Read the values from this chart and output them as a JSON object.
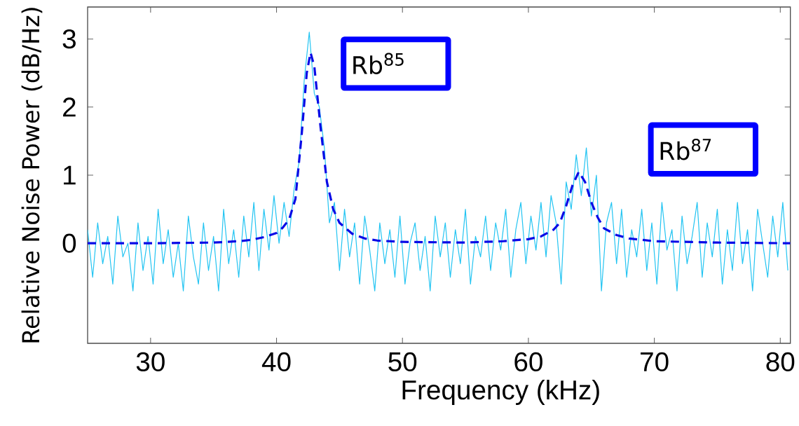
{
  "chart_data": {
    "type": "line",
    "xlabel": "Frequency (kHz)",
    "ylabel": "Relative Noise Power (dB/Hz)",
    "xlim": [
      25,
      80.8
    ],
    "ylim": [
      -1.47,
      3.47
    ],
    "xticks": [
      30,
      40,
      50,
      60,
      70,
      80
    ],
    "yticks": [
      0,
      1,
      2,
      3
    ],
    "marker": "none",
    "series": [
      {
        "color": "#22c4f2",
        "line_style": "solid",
        "x": [
          25.0,
          25.4,
          25.8,
          26.2,
          26.6,
          27.0,
          27.4,
          27.8,
          28.2,
          28.6,
          29.0,
          29.4,
          29.8,
          30.2,
          30.6,
          31.0,
          31.4,
          31.8,
          32.2,
          32.6,
          33.0,
          33.4,
          33.8,
          34.2,
          34.6,
          35.0,
          35.4,
          35.8,
          36.2,
          36.6,
          37.0,
          37.4,
          37.8,
          38.2,
          38.6,
          39.0,
          39.4,
          39.8,
          40.2,
          40.6,
          41.0,
          41.4,
          41.8,
          42.2,
          42.6,
          43.0,
          43.4,
          43.8,
          44.2,
          44.6,
          45.0,
          45.4,
          45.8,
          46.2,
          46.6,
          47.0,
          47.4,
          47.8,
          48.2,
          48.6,
          49.0,
          49.4,
          49.8,
          50.2,
          50.6,
          51.0,
          51.4,
          51.8,
          52.2,
          52.6,
          53.0,
          53.4,
          53.8,
          54.2,
          54.6,
          55.0,
          55.4,
          55.8,
          56.2,
          56.6,
          57.0,
          57.4,
          57.8,
          58.2,
          58.6,
          59.0,
          59.4,
          59.8,
          60.2,
          60.6,
          61.0,
          61.4,
          61.8,
          62.2,
          62.6,
          63.0,
          63.4,
          63.8,
          64.2,
          64.6,
          65.0,
          65.4,
          65.8,
          66.2,
          66.6,
          67.0,
          67.4,
          67.8,
          68.2,
          68.6,
          69.0,
          69.4,
          69.8,
          70.2,
          70.6,
          71.0,
          71.4,
          71.8,
          72.2,
          72.6,
          73.0,
          73.4,
          73.8,
          74.2,
          74.6,
          75.0,
          75.4,
          75.8,
          76.2,
          76.6,
          77.0,
          77.4,
          77.8,
          78.2,
          78.6,
          79.0,
          79.4,
          79.8,
          80.2,
          80.6
        ],
        "values": [
          0.2,
          -0.5,
          0.3,
          -0.3,
          0.1,
          -0.6,
          0.4,
          -0.2,
          0.0,
          -0.7,
          0.3,
          -0.4,
          0.1,
          -0.6,
          0.5,
          -0.3,
          0.2,
          -0.5,
          0.0,
          -0.7,
          0.4,
          -0.2,
          -0.6,
          0.3,
          -0.4,
          0.1,
          -0.7,
          0.5,
          -0.3,
          0.2,
          -0.5,
          0.4,
          -0.2,
          0.6,
          -0.4,
          0.5,
          -0.1,
          0.7,
          0.0,
          0.6,
          0.1,
          0.8,
          1.2,
          2.4,
          3.1,
          2.2,
          2.0,
          1.4,
          0.3,
          0.6,
          -0.4,
          0.5,
          -0.2,
          0.3,
          -0.6,
          0.4,
          -0.1,
          -0.7,
          0.3,
          -0.3,
          0.2,
          -0.5,
          0.4,
          -0.6,
          0.0,
          0.3,
          -0.4,
          0.1,
          -0.7,
          0.4,
          -0.2,
          0.3,
          -0.5,
          0.2,
          -0.3,
          0.5,
          -0.6,
          0.1,
          -0.2,
          0.4,
          -0.4,
          0.3,
          -0.1,
          0.5,
          -0.5,
          0.2,
          0.6,
          -0.3,
          0.4,
          -0.1,
          0.6,
          -0.2,
          0.7,
          0.3,
          -0.6,
          0.9,
          0.5,
          1.3,
          0.7,
          1.4,
          0.4,
          1.0,
          -0.7,
          0.3,
          0.6,
          -0.3,
          0.5,
          -0.5,
          0.2,
          -0.2,
          0.5,
          -0.4,
          0.3,
          -0.6,
          0.6,
          -0.1,
          0.2,
          -0.7,
          0.4,
          -0.3,
          0.1,
          0.6,
          -0.5,
          0.3,
          -0.2,
          0.5,
          -0.6,
          0.2,
          -0.4,
          0.6,
          -0.3,
          0.2,
          -0.7,
          0.5,
          0.0,
          -0.5,
          0.4,
          -0.2,
          0.6,
          -0.4
        ]
      },
      {
        "color": "#0a0ae6",
        "line_style": "dashed",
        "x": [
          25,
          30,
          35,
          37,
          38,
          39,
          40,
          40.5,
          41,
          41.5,
          42,
          42.4,
          42.7,
          43,
          43.5,
          44,
          44.5,
          45,
          46,
          47,
          48,
          50,
          55,
          58,
          60,
          61,
          62,
          62.5,
          63,
          63.5,
          64,
          64.5,
          65,
          65.5,
          66,
          67,
          68,
          70,
          75,
          80.8
        ],
        "values": [
          0,
          0,
          0.01,
          0.03,
          0.05,
          0.09,
          0.15,
          0.23,
          0.35,
          0.65,
          1.6,
          2.5,
          2.8,
          2.6,
          1.7,
          0.9,
          0.5,
          0.3,
          0.14,
          0.07,
          0.04,
          0.02,
          0.01,
          0.03,
          0.06,
          0.1,
          0.2,
          0.3,
          0.55,
          0.85,
          1.05,
          0.9,
          0.6,
          0.38,
          0.22,
          0.12,
          0.07,
          0.03,
          0.01,
          0
        ]
      }
    ],
    "annotations": [
      "Rb$^{85}$",
      "Rb$^{87}$"
    ]
  }
}
